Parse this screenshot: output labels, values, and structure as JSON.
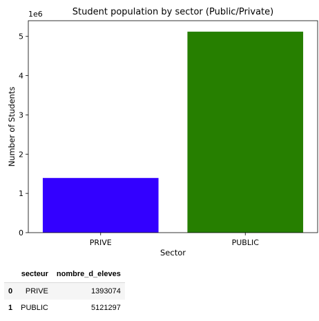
{
  "chart_data": {
    "type": "bar",
    "title": "Student population by sector (Public/Private)",
    "xlabel": "Sector",
    "ylabel": "Number of Students",
    "exponent_label": "1e6",
    "categories": [
      "PRIVE",
      "PUBLIC"
    ],
    "values": [
      1393074,
      5121297
    ],
    "colors": [
      "#3300ff",
      "#267f00"
    ],
    "ylim": [
      0,
      5400000
    ],
    "yticks": [
      0,
      1000000,
      2000000,
      3000000,
      4000000,
      5000000
    ],
    "ytick_labels": [
      "0",
      "1",
      "2",
      "3",
      "4",
      "5"
    ],
    "grid": false,
    "legend": "none"
  },
  "table": {
    "index_header": "",
    "columns": [
      "secteur",
      "nombre_d_eleves"
    ],
    "rows": [
      {
        "index": "0",
        "cells": [
          "PRIVE",
          "1393074"
        ]
      },
      {
        "index": "1",
        "cells": [
          "PUBLIC",
          "5121297"
        ]
      }
    ]
  }
}
